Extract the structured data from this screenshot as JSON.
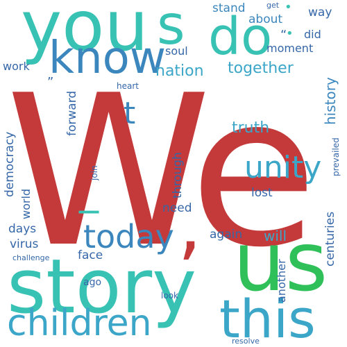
{
  "words": [
    {
      "text": "We",
      "color": "#c43a3a"
    },
    {
      "text": "us",
      "color": "#30c05a"
    },
    {
      "text": "you",
      "color": "#38c2b4"
    },
    {
      "text": "story",
      "color": "#38c2b4"
    },
    {
      "text": "this",
      "color": "#3ba6c8"
    },
    {
      "text": "children",
      "color": "#3ba6c8"
    },
    {
      "text": "s",
      "color": "#38c2b4"
    },
    {
      "text": "do",
      "color": "#38c2b4"
    },
    {
      "text": "know",
      "color": "#3a86bd"
    },
    {
      "text": "today",
      "color": "#3a86bd"
    },
    {
      "text": "unity",
      "color": "#3ba6c8"
    },
    {
      "text": "t",
      "color": "#3a86bd"
    },
    {
      "text": "_",
      "color": "#38c2b4"
    },
    {
      "text": ",",
      "color": "#c43a3a"
    },
    {
      "text": "nation",
      "color": "#3ba6c8"
    },
    {
      "text": "together",
      "color": "#3ba6c8"
    },
    {
      "text": "truth",
      "color": "#3ba6c8"
    },
    {
      "text": "history",
      "color": "#3a86bd"
    },
    {
      "text": "stand",
      "color": "#3a86bd"
    },
    {
      "text": "about",
      "color": "#3a86bd"
    },
    {
      "text": "way",
      "color": "#3567a8"
    },
    {
      "text": "did",
      "color": "#3567a8"
    },
    {
      "text": "moment",
      "color": "#3567a8"
    },
    {
      "text": "soul",
      "color": "#3567a8"
    },
    {
      "text": "work",
      "color": "#3567a8"
    },
    {
      "text": "forward",
      "color": "#3567a8"
    },
    {
      "text": "democracy",
      "color": "#3567a8"
    },
    {
      "text": "world",
      "color": "#3567a8"
    },
    {
      "text": "days",
      "color": "#3567a8"
    },
    {
      "text": "virus",
      "color": "#3567a8"
    },
    {
      "text": "face",
      "color": "#3567a8"
    },
    {
      "text": "ago",
      "color": "#3567a8"
    },
    {
      "text": "through",
      "color": "#3567a8"
    },
    {
      "text": "need",
      "color": "#3567a8"
    },
    {
      "text": "again",
      "color": "#3567a8"
    },
    {
      "text": "will",
      "color": "#3ba6c8"
    },
    {
      "text": "lost",
      "color": "#3567a8"
    },
    {
      "text": "another",
      "color": "#3567a8"
    },
    {
      "text": "centuries",
      "color": "#3567a8"
    },
    {
      "text": "prevailed",
      "color": "#3567a8"
    },
    {
      "text": "heart",
      "color": "#3567a8"
    },
    {
      "text": "join",
      "color": "#3567a8"
    },
    {
      "text": "challenge",
      "color": "#3567a8"
    },
    {
      "text": "look",
      "color": "#3567a8"
    },
    {
      "text": "resolve",
      "color": "#3567a8"
    },
    {
      "text": "get",
      "color": "#3567a8"
    },
    {
      "text": "”",
      "color": "#3567a8"
    },
    {
      "text": "“",
      "color": "#3567a8"
    },
    {
      "text": "•",
      "color": "#38c2b4"
    },
    {
      "text": "•",
      "color": "#38c2b4"
    },
    {
      "text": "•",
      "color": "#c43a3a"
    }
  ]
}
